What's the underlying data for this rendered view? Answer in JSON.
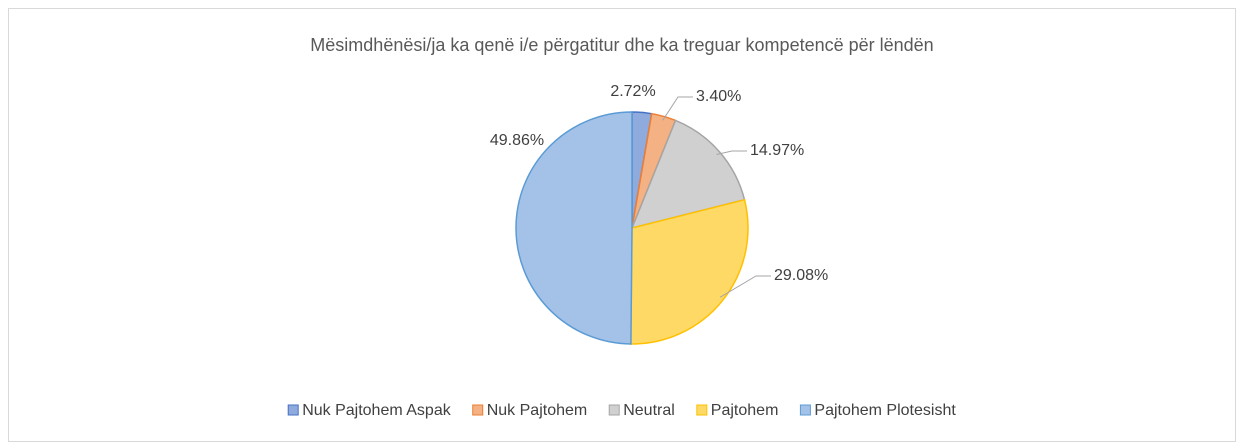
{
  "chart_data": {
    "type": "pie",
    "title": "Mësimdhënësi/ja ka qenë i/e përgatitur dhe ka treguar kompetencë për lëndën",
    "categories": [
      "Nuk Pajtohem Aspak",
      "Nuk Pajtohem",
      "Neutral",
      "Pajtohem",
      "Pajtohem Plotesisht"
    ],
    "values": [
      2.72,
      3.4,
      14.97,
      29.08,
      49.86
    ],
    "value_labels": [
      "2.72%",
      "3.40%",
      "14.97%",
      "29.08%",
      "49.86%"
    ],
    "colors": [
      "#8faadc",
      "#f4b183",
      "#d0d0d0",
      "#ffd966",
      "#a4c2e8"
    ],
    "edge_colors": [
      "#4472c4",
      "#ed7d31",
      "#a5a5a5",
      "#ffc000",
      "#5b9bd5"
    ],
    "legend": "bottom"
  }
}
